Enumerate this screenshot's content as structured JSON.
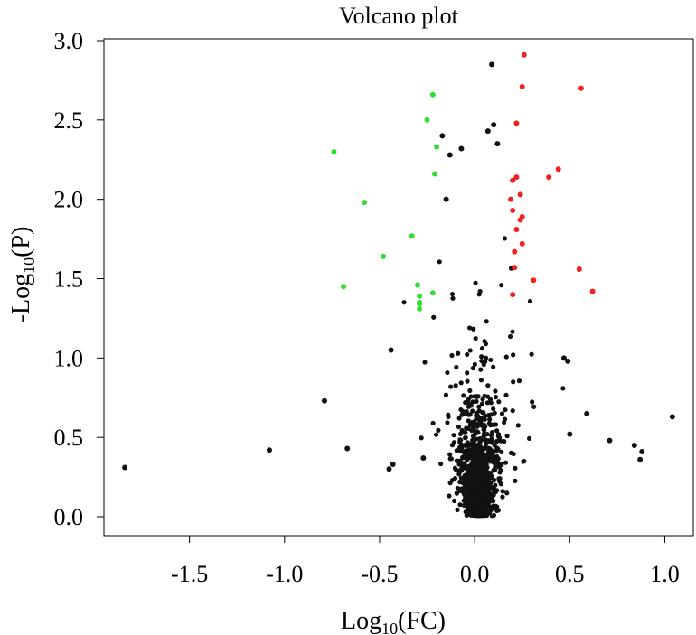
{
  "chart_data": {
    "type": "scatter",
    "title": "Volcano plot",
    "xlabel": {
      "prefix": "Log",
      "subscript": "10",
      "suffix": "(FC)"
    },
    "ylabel": {
      "prefix": "-Log",
      "subscript": "10",
      "suffix": "(P)"
    },
    "xlim": [
      -1.95,
      1.15
    ],
    "ylim": [
      -0.13,
      3.0
    ],
    "xticks": [
      -1.5,
      -1.0,
      -0.5,
      0.0,
      0.5,
      1.0
    ],
    "xtick_labels": [
      "-1.5",
      "-1.0",
      "-0.5",
      "0.0",
      "0.5",
      "1.0"
    ],
    "yticks": [
      0.0,
      0.5,
      1.0,
      1.5,
      2.0,
      2.5,
      3.0
    ],
    "ytick_labels": [
      "0.0",
      "0.5",
      "1.0",
      "1.5",
      "2.0",
      "2.5",
      "3.0"
    ],
    "grid": false,
    "legend": "none",
    "colors": {
      "down": "#33dd33",
      "up": "#ee2222",
      "ns": "#111111"
    },
    "series": [
      {
        "group": "down",
        "x": [
          -0.74,
          -0.58,
          -0.48,
          -0.33,
          -0.69,
          -0.3,
          -0.29,
          -0.29,
          -0.29,
          -0.22,
          -0.2,
          -0.25,
          -0.21,
          -0.22,
          -0.29
        ],
        "y": [
          2.3,
          1.98,
          1.64,
          1.77,
          1.45,
          1.46,
          1.39,
          1.35,
          1.31,
          2.66,
          2.33,
          2.5,
          2.16,
          1.41,
          1.34
        ]
      },
      {
        "group": "up",
        "x": [
          0.26,
          0.25,
          0.56,
          0.22,
          0.44,
          0.39,
          0.22,
          0.2,
          0.24,
          0.19,
          0.2,
          0.25,
          0.24,
          0.22,
          0.25,
          0.21,
          0.21,
          0.55,
          0.31,
          0.62,
          0.2
        ],
        "y": [
          2.91,
          2.71,
          2.7,
          2.48,
          2.19,
          2.14,
          2.14,
          2.12,
          2.03,
          2.0,
          1.93,
          1.89,
          1.87,
          1.81,
          1.72,
          1.67,
          1.57,
          1.56,
          1.49,
          1.42,
          1.4
        ]
      },
      {
        "group": "ns",
        "x": [
          -1.84,
          -1.08,
          -0.79,
          -0.67,
          -0.27,
          0.09,
          0.07,
          0.12,
          0.1,
          -0.17,
          -0.07,
          -0.15,
          -0.13,
          1.04,
          0.84,
          0.88,
          0.87,
          0.71,
          0.59,
          0.5,
          0.49,
          0.47,
          -0.43,
          -0.44,
          -0.45
        ],
        "y": [
          0.31,
          0.42,
          0.73,
          0.43,
          0.37,
          2.85,
          2.43,
          2.35,
          2.47,
          2.4,
          2.32,
          2.0,
          2.28,
          0.63,
          0.45,
          0.41,
          0.36,
          0.48,
          0.65,
          0.52,
          0.98,
          1.0,
          0.33,
          1.05,
          0.3
        ]
      }
    ]
  }
}
